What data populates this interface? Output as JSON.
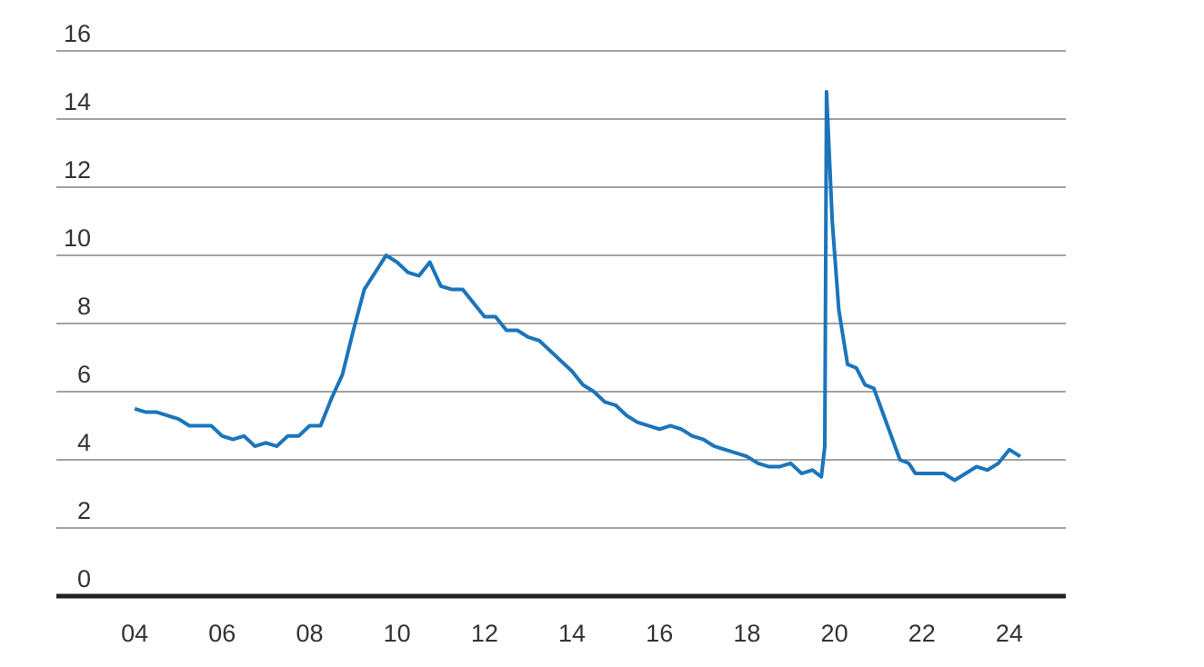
{
  "chart_data": {
    "type": "line",
    "x": [
      2004.0,
      2004.25,
      2004.5,
      2004.75,
      2005.0,
      2005.25,
      2005.5,
      2005.75,
      2006.0,
      2006.25,
      2006.5,
      2006.75,
      2007.0,
      2007.25,
      2007.5,
      2007.75,
      2008.0,
      2008.25,
      2008.5,
      2008.75,
      2009.0,
      2009.25,
      2009.5,
      2009.75,
      2010.0,
      2010.25,
      2010.5,
      2010.75,
      2011.0,
      2011.25,
      2011.5,
      2011.75,
      2012.0,
      2012.25,
      2012.5,
      2012.75,
      2013.0,
      2013.25,
      2013.5,
      2013.75,
      2014.0,
      2014.25,
      2014.5,
      2014.75,
      2015.0,
      2015.25,
      2015.5,
      2015.75,
      2016.0,
      2016.25,
      2016.5,
      2016.75,
      2017.0,
      2017.25,
      2017.5,
      2017.75,
      2018.0,
      2018.25,
      2018.5,
      2018.75,
      2019.0,
      2019.25,
      2019.5,
      2019.7,
      2019.78,
      2019.82,
      2019.95,
      2020.1,
      2020.3,
      2020.5,
      2020.7,
      2020.9,
      2021.1,
      2021.3,
      2021.5,
      2021.7,
      2021.85,
      2022.25,
      2022.5,
      2022.75,
      2023.0,
      2023.25,
      2023.5,
      2023.75,
      2024.0,
      2024.25
    ],
    "series": [
      {
        "color": "#1b75bb",
        "values": [
          5.5,
          5.4,
          5.4,
          5.3,
          5.2,
          5.0,
          5.0,
          5.0,
          4.7,
          4.6,
          4.7,
          4.4,
          4.5,
          4.4,
          4.7,
          4.7,
          5.0,
          5.0,
          5.8,
          6.5,
          7.8,
          9.0,
          9.5,
          10.0,
          9.8,
          9.5,
          9.4,
          9.8,
          9.1,
          9.0,
          9.0,
          8.6,
          8.2,
          8.2,
          7.8,
          7.8,
          7.6,
          7.5,
          7.2,
          6.9,
          6.6,
          6.2,
          6.0,
          5.7,
          5.6,
          5.3,
          5.1,
          5.0,
          4.9,
          5.0,
          4.9,
          4.7,
          4.6,
          4.4,
          4.3,
          4.2,
          4.1,
          3.9,
          3.8,
          3.8,
          3.9,
          3.6,
          3.7,
          3.5,
          4.4,
          14.8,
          11.0,
          8.4,
          6.8,
          6.7,
          6.2,
          6.1,
          5.4,
          4.7,
          4.0,
          3.9,
          3.6,
          3.6,
          3.6,
          3.4,
          3.6,
          3.8,
          3.7,
          3.9,
          4.3,
          4.1
        ]
      }
    ],
    "xlim": [
      2002.21,
      2025.29
    ],
    "xticks": [
      {
        "value": 2004,
        "label": "04"
      },
      {
        "value": 2006,
        "label": "06"
      },
      {
        "value": 2008,
        "label": "08"
      },
      {
        "value": 2010,
        "label": "10"
      },
      {
        "value": 2012,
        "label": "12"
      },
      {
        "value": 2014,
        "label": "14"
      },
      {
        "value": 2016,
        "label": "16"
      },
      {
        "value": 2018,
        "label": "18"
      },
      {
        "value": 2020,
        "label": "20"
      },
      {
        "value": 2022,
        "label": "22"
      },
      {
        "value": 2024,
        "label": "24"
      }
    ],
    "ylim": [
      0,
      16
    ],
    "yticks": [
      0,
      2,
      4,
      6,
      8,
      10,
      12,
      14,
      16
    ],
    "grid": true
  }
}
